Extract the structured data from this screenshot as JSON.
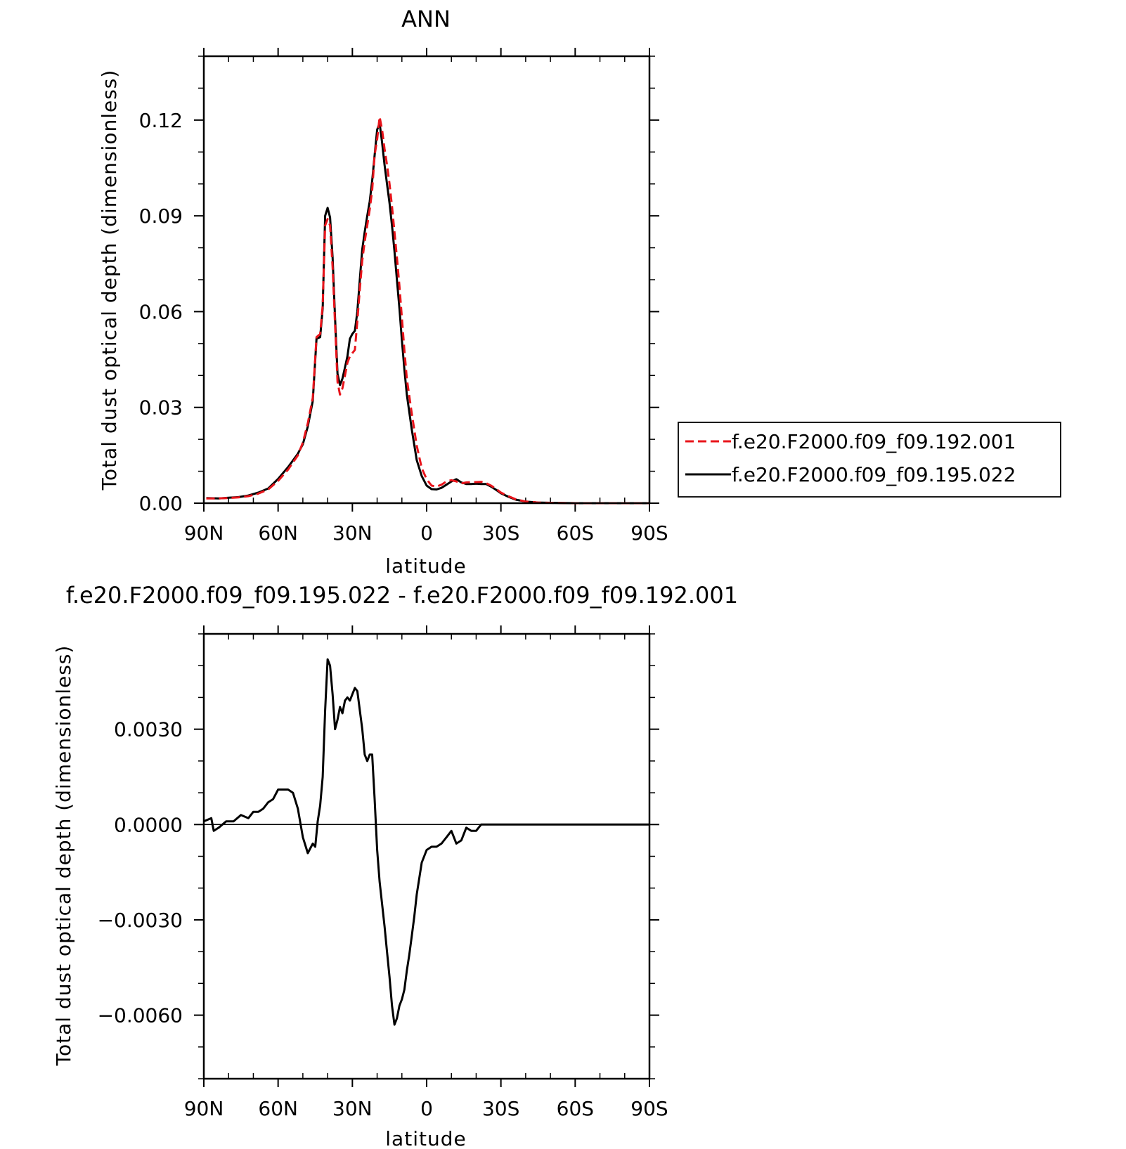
{
  "chart_data": [
    {
      "type": "line",
      "title": "ANN",
      "xlabel": "latitude",
      "ylabel": "Total dust optical depth (dimensionless)",
      "x_ticks": [
        {
          "value": 90,
          "label": "90N"
        },
        {
          "value": 60,
          "label": "60N"
        },
        {
          "value": 30,
          "label": "30N"
        },
        {
          "value": 0,
          "label": "0"
        },
        {
          "value": -30,
          "label": "30S"
        },
        {
          "value": -60,
          "label": "60S"
        },
        {
          "value": -90,
          "label": "90S"
        }
      ],
      "y_ticks": [
        {
          "value": 0.0,
          "label": "0.00"
        },
        {
          "value": 0.03,
          "label": "0.03"
        },
        {
          "value": 0.06,
          "label": "0.06"
        },
        {
          "value": 0.09,
          "label": "0.09"
        },
        {
          "value": 0.12,
          "label": "0.12"
        }
      ],
      "xlim": [
        90,
        -90
      ],
      "ylim": [
        0,
        0.14
      ],
      "grid": false,
      "legend_position": "right",
      "series": [
        {
          "name": "f.e20.F2000.f09_f09.192.001",
          "color": "#e8141b",
          "style": "dashed",
          "x": [
            89,
            84,
            80,
            76,
            72,
            68,
            64,
            60,
            56,
            52,
            50,
            48,
            46,
            44.5,
            43,
            42,
            41,
            40,
            39,
            38,
            37,
            36,
            35,
            34,
            33,
            32,
            31,
            30,
            29,
            28,
            27,
            26,
            25,
            24,
            23,
            22,
            21,
            20,
            19,
            18,
            17,
            16,
            15,
            14,
            13,
            12,
            11,
            10,
            9,
            8,
            6,
            4,
            2,
            0,
            -2,
            -4,
            -6,
            -8,
            -10,
            -12,
            -14,
            -16,
            -18,
            -20,
            -22,
            -24,
            -26,
            -28,
            -30,
            -33,
            -36,
            -40,
            -45,
            -50,
            -60,
            -70,
            -80,
            -90
          ],
          "y": [
            0.0015,
            0.0015,
            0.0016,
            0.0018,
            0.0022,
            0.003,
            0.0043,
            0.007,
            0.0105,
            0.015,
            0.019,
            0.025,
            0.033,
            0.052,
            0.053,
            0.062,
            0.087,
            0.089,
            0.087,
            0.074,
            0.056,
            0.038,
            0.034,
            0.036,
            0.04,
            0.044,
            0.046,
            0.047,
            0.048,
            0.057,
            0.067,
            0.076,
            0.082,
            0.087,
            0.092,
            0.098,
            0.109,
            0.114,
            0.121,
            0.117,
            0.111,
            0.106,
            0.1,
            0.093,
            0.085,
            0.077,
            0.068,
            0.058,
            0.048,
            0.039,
            0.028,
            0.018,
            0.011,
            0.0075,
            0.0055,
            0.0052,
            0.0058,
            0.0068,
            0.0072,
            0.0068,
            0.0062,
            0.0065,
            0.0066,
            0.0066,
            0.0067,
            0.0063,
            0.0055,
            0.0045,
            0.0033,
            0.0022,
            0.0012,
            0.0005,
            0.0002,
            0.0001,
            0.0,
            0.0,
            0.0,
            0.0
          ]
        },
        {
          "name": "f.e20.F2000.f09_f09.195.022",
          "color": "#000000",
          "style": "solid",
          "x": [
            89,
            84,
            80,
            76,
            72,
            68,
            64,
            60,
            56,
            52,
            50,
            48,
            46,
            44.5,
            43,
            42,
            41,
            40,
            39,
            38,
            37,
            36,
            35,
            34,
            33,
            32,
            31,
            30,
            29,
            28,
            27,
            26,
            25,
            24,
            23,
            22,
            21,
            20,
            19,
            18,
            17,
            16,
            15,
            14,
            13,
            12,
            11,
            10,
            9,
            8,
            6,
            4,
            2,
            0,
            -2,
            -4,
            -6,
            -8,
            -10,
            -12,
            -14,
            -16,
            -18,
            -20,
            -22,
            -24,
            -26,
            -28,
            -30,
            -33,
            -36,
            -40,
            -45,
            -50,
            -60,
            -70,
            -80,
            -90
          ],
          "y": [
            0.0016,
            0.0015,
            0.0017,
            0.0019,
            0.0024,
            0.0033,
            0.0046,
            0.0076,
            0.0113,
            0.0155,
            0.0185,
            0.024,
            0.032,
            0.0515,
            0.052,
            0.061,
            0.09,
            0.0925,
            0.0895,
            0.077,
            0.058,
            0.0405,
            0.037,
            0.039,
            0.0425,
            0.046,
            0.0515,
            0.053,
            0.054,
            0.06,
            0.07,
            0.0795,
            0.085,
            0.09,
            0.0945,
            0.101,
            0.109,
            0.117,
            0.119,
            0.113,
            0.106,
            0.1,
            0.094,
            0.087,
            0.079,
            0.07,
            0.061,
            0.051,
            0.042,
            0.034,
            0.023,
            0.0135,
            0.0085,
            0.0055,
            0.0044,
            0.0043,
            0.0048,
            0.0058,
            0.0068,
            0.0075,
            0.0065,
            0.006,
            0.006,
            0.0061,
            0.006,
            0.006,
            0.0052,
            0.0042,
            0.0031,
            0.002,
            0.0011,
            0.0005,
            0.0002,
            0.0001,
            0.0,
            0.0,
            0.0,
            0.0
          ]
        }
      ]
    },
    {
      "type": "line",
      "title": "f.e20.F2000.f09_f09.195.022 - f.e20.F2000.f09_f09.192.001",
      "xlabel": "latitude",
      "ylabel": "Total dust optical depth (dimensionless)",
      "x_ticks": [
        {
          "value": 90,
          "label": "90N"
        },
        {
          "value": 60,
          "label": "60N"
        },
        {
          "value": 30,
          "label": "30N"
        },
        {
          "value": 0,
          "label": "0"
        },
        {
          "value": -30,
          "label": "30S"
        },
        {
          "value": -60,
          "label": "60S"
        },
        {
          "value": -90,
          "label": "90S"
        }
      ],
      "y_ticks": [
        {
          "value": -0.006,
          "label": "−0.0060"
        },
        {
          "value": -0.003,
          "label": "−0.0030"
        },
        {
          "value": 0.0,
          "label": "0.0000"
        },
        {
          "value": 0.003,
          "label": "0.0030"
        }
      ],
      "xlim": [
        90,
        -90
      ],
      "ylim": [
        -0.008,
        0.006
      ],
      "grid": false,
      "series": [
        {
          "name": "",
          "color": "#000000",
          "style": "solid",
          "x": [
            90,
            87,
            86,
            84,
            81,
            78,
            75,
            72,
            70,
            68,
            66,
            64,
            62,
            60,
            58,
            56,
            54,
            52,
            50,
            48,
            46,
            45,
            44,
            43,
            42,
            41,
            40,
            39,
            38,
            37,
            36,
            35,
            34,
            33,
            32,
            31,
            30,
            29,
            28,
            27,
            26,
            25,
            24,
            23,
            22,
            21,
            20,
            19,
            18,
            17,
            16,
            15,
            14,
            13,
            12,
            11,
            10,
            9,
            8,
            7,
            6,
            5,
            4,
            2,
            0,
            -2,
            -4,
            -6,
            -8,
            -10,
            -12,
            -14,
            -16,
            -18,
            -20,
            -22,
            -24,
            -26,
            -28,
            -30,
            -32,
            -34,
            -36,
            -40,
            -45,
            -50,
            -55,
            -60,
            -70,
            -80,
            -90
          ],
          "y": [
            0.0001,
            0.0002,
            -0.0002,
            -0.0001,
            0.0001,
            0.0001,
            0.0003,
            0.0002,
            0.0004,
            0.0004,
            0.0005,
            0.0007,
            0.0008,
            0.0011,
            0.0011,
            0.0011,
            0.001,
            0.0005,
            -0.0004,
            -0.0009,
            -0.0006,
            -0.0007,
            0.0001,
            0.0006,
            0.0015,
            0.0036,
            0.0052,
            0.005,
            0.0041,
            0.003,
            0.0033,
            0.0037,
            0.0035,
            0.0039,
            0.004,
            0.0039,
            0.0041,
            0.0043,
            0.0042,
            0.0036,
            0.003,
            0.0022,
            0.002,
            0.0022,
            0.0022,
            0.0008,
            -0.0008,
            -0.0018,
            -0.0025,
            -0.0032,
            -0.004,
            -0.0048,
            -0.0057,
            -0.0063,
            -0.0061,
            -0.0057,
            -0.0055,
            -0.0052,
            -0.0046,
            -0.0041,
            -0.0035,
            -0.0029,
            -0.0022,
            -0.0012,
            -0.0008,
            -0.0007,
            -0.0007,
            -0.0006,
            -0.0004,
            -0.0002,
            -0.0006,
            -0.0005,
            -0.0001,
            -0.0002,
            -0.0002,
            0.0,
            0.0,
            0.0,
            0.0,
            0.0,
            0.0,
            0.0,
            0.0,
            0.0,
            0.0,
            0.0,
            0.0,
            0.0,
            0.0,
            0.0,
            0.0
          ]
        }
      ]
    }
  ]
}
